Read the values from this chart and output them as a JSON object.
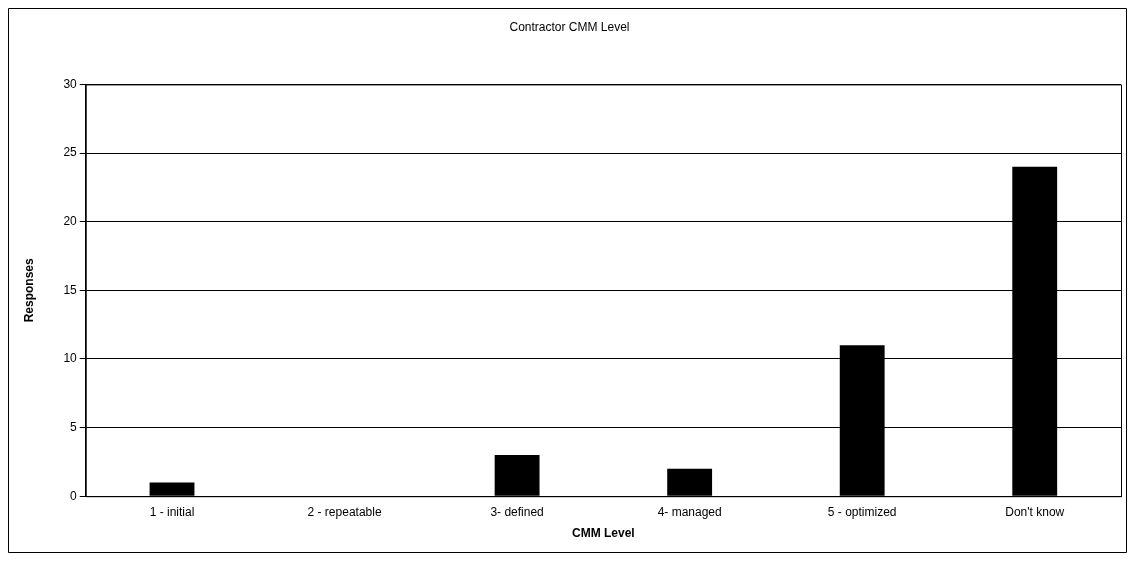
{
  "chart_data": {
    "type": "bar",
    "title": "Contractor CMM Level",
    "xlabel": "CMM Level",
    "ylabel": "Responses",
    "categories": [
      "1 - initial",
      "2 - repeatable",
      "3- defined",
      "4- managed",
      "5 - optimized",
      "Don't know"
    ],
    "values": [
      1,
      0,
      3,
      2,
      11,
      24
    ],
    "color": "#000000",
    "ylim": [
      0,
      30
    ],
    "yticks": [
      0,
      5,
      10,
      15,
      20,
      25,
      30
    ],
    "grid": "y"
  }
}
